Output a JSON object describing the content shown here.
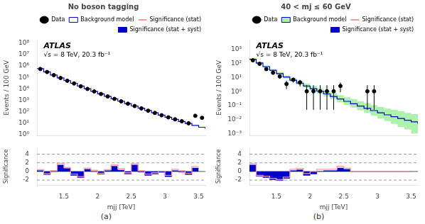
{
  "chart_data": [
    {
      "type": "line",
      "title": "No boson tagging",
      "panel_label": "(a)",
      "annotations": [
        "ATLAS",
        "√s = 8 TeV, 20.3 fb⁻¹"
      ],
      "xlabel": "mjj [TeV]",
      "xlim": [
        1.1,
        3.6
      ],
      "xticks": [
        1.5,
        2,
        2.5,
        3,
        3.5
      ],
      "ylabel": "Events / 100 GeV",
      "log": "y",
      "ylim": [
        0.8,
        200000000
      ],
      "yticks": [
        {
          "value": 1,
          "label": "10⁰"
        },
        {
          "value": 10,
          "label": "10¹"
        },
        {
          "value": 100,
          "label": "10²"
        },
        {
          "value": 1000,
          "label": "10³"
        },
        {
          "value": 10000,
          "label": "10⁴"
        },
        {
          "value": 100000,
          "label": "10⁵"
        },
        {
          "value": 1000000,
          "label": "10⁶"
        },
        {
          "value": 10000000,
          "label": "10⁷"
        },
        {
          "value": 100000000,
          "label": "10⁸"
        }
      ],
      "y2label": "Significance",
      "y2lim": [
        -3.2,
        5.5
      ],
      "y2ticks": [
        -2,
        0,
        2,
        4
      ],
      "hlines": [
        {
          "value": 0,
          "line_style": "solid"
        },
        {
          "value": 2,
          "line_style": "dashed"
        },
        {
          "value": -2,
          "line_style": "dashed"
        },
        {
          "value": 4,
          "line_style": "dashed"
        }
      ],
      "grid": false,
      "legend": "upper right",
      "series": [
        {
          "name": "Data",
          "type": "scatter",
          "marker": "circle",
          "color": "black",
          "x": [
            1.15,
            1.25,
            1.35,
            1.45,
            1.55,
            1.65,
            1.75,
            1.85,
            1.95,
            2.05,
            2.15,
            2.25,
            2.35,
            2.45,
            2.55,
            2.65,
            2.75,
            2.85,
            2.95,
            3.05,
            3.15,
            3.25,
            3.35,
            3.45,
            3.55
          ],
          "values": [
            550000,
            300000,
            160000,
            90000,
            52000,
            30000,
            17000,
            10000,
            6000,
            3600,
            2200,
            1350,
            820,
            510,
            320,
            200,
            125,
            80,
            50,
            33,
            22,
            15,
            10,
            45,
            30
          ],
          "errors": [
            800,
            550,
            400,
            300,
            230,
            175,
            130,
            100,
            78,
            60,
            47,
            37,
            29,
            23,
            18,
            14,
            11,
            9,
            7,
            6,
            5,
            4,
            3,
            7,
            6
          ]
        },
        {
          "name": "Background model",
          "type": "step",
          "color": "#0000cc",
          "x": [
            1.1,
            1.2,
            1.3,
            1.4,
            1.5,
            1.6,
            1.7,
            1.8,
            1.9,
            2.0,
            2.1,
            2.2,
            2.3,
            2.4,
            2.5,
            2.6,
            2.7,
            2.8,
            2.9,
            3.0,
            3.1,
            3.2,
            3.3,
            3.4,
            3.5,
            3.6
          ],
          "values": [
            600000,
            310000,
            165000,
            92000,
            53000,
            31000,
            18000,
            10500,
            6200,
            3700,
            2270,
            1390,
            850,
            525,
            325,
            205,
            130,
            82,
            52,
            34,
            22,
            14.5,
            9.8,
            6.6,
            4.5,
            3.0
          ]
        },
        {
          "name": "Significance (stat)",
          "type": "step",
          "axis": "y2",
          "color": "#ff9999",
          "bins": [
            1.1,
            1.2,
            1.3,
            1.4,
            1.5,
            1.6,
            1.7,
            1.8,
            1.9,
            2.0,
            2.1,
            2.2,
            2.3,
            2.4,
            2.5,
            2.6,
            2.7,
            2.8,
            2.9,
            3.0,
            3.1,
            3.2,
            3.3,
            3.4,
            3.5
          ],
          "values": [
            0.4,
            -0.5,
            0.2,
            1.9,
            0.9,
            -0.6,
            -1.2,
            0.8,
            0.3,
            -0.4,
            0.4,
            1.5,
            0.6,
            -0.3,
            1.8,
            0.2,
            -0.6,
            -0.3,
            0.1,
            -0.9,
            0.5,
            0.2,
            -0.4,
            1.1
          ]
        },
        {
          "name": "Significance (stat + syst)",
          "type": "histogram",
          "axis": "y2",
          "color": "#0000cc",
          "bins": [
            1.1,
            1.2,
            1.3,
            1.4,
            1.5,
            1.6,
            1.7,
            1.8,
            1.9,
            2.0,
            2.1,
            2.2,
            2.3,
            2.4,
            2.5,
            2.6,
            2.7,
            2.8,
            2.9,
            3.0,
            3.1,
            3.2,
            3.3,
            3.4,
            3.5
          ],
          "values": [
            0.2,
            -0.7,
            0.0,
            1.5,
            0.7,
            -0.9,
            -1.4,
            0.5,
            0.0,
            -0.6,
            0.2,
            1.2,
            0.3,
            -0.6,
            1.5,
            -0.1,
            -0.9,
            -0.6,
            -0.2,
            -1.2,
            0.2,
            -0.1,
            -0.7,
            0.8
          ]
        }
      ]
    },
    {
      "type": "line",
      "title": "40 < mj ≤ 60 GeV",
      "panel_label": "(b)",
      "annotations": [
        "ATLAS",
        "√s = 8 TeV, 20.3 fb⁻¹"
      ],
      "xlabel": "mjj [TeV]",
      "xlim": [
        1.1,
        3.6
      ],
      "xticks": [
        1.5,
        2,
        2.5,
        3,
        3.5
      ],
      "ylabel": "Events / 100 GeV",
      "log": "y",
      "ylim": [
        0.0007,
        5000
      ],
      "yticks": [
        {
          "value": 0.001,
          "label": "10⁻³"
        },
        {
          "value": 0.01,
          "label": "10⁻²"
        },
        {
          "value": 0.1,
          "label": "10⁻¹"
        },
        {
          "value": 1,
          "label": "10⁰"
        },
        {
          "value": 10,
          "label": "10¹"
        },
        {
          "value": 100,
          "label": "10²"
        },
        {
          "value": 1000,
          "label": "10³"
        }
      ],
      "y2label": "Significance",
      "y2lim": [
        -3.2,
        5.5
      ],
      "y2ticks": [
        -2,
        0,
        2,
        4
      ],
      "hlines": [
        {
          "value": 0,
          "line_style": "solid"
        },
        {
          "value": 2,
          "line_style": "dashed"
        },
        {
          "value": -2,
          "line_style": "dashed"
        },
        {
          "value": 4,
          "line_style": "dashed"
        }
      ],
      "grid": false,
      "legend": "upper right",
      "series": [
        {
          "name": "Data",
          "type": "scatter",
          "marker": "circle",
          "color": "black",
          "x": [
            1.15,
            1.25,
            1.35,
            1.45,
            1.55,
            1.65,
            1.75,
            1.85,
            1.95,
            2.05,
            2.15,
            2.25,
            2.35,
            2.45,
            2.85,
            2.95
          ],
          "values": [
            170,
            95,
            40,
            22,
            12,
            3.5,
            7.0,
            4.5,
            1.05,
            1.05,
            1.05,
            1.05,
            1.05,
            2.5,
            1.05,
            1.05
          ],
          "errors_low": [
            13,
            10,
            6,
            5,
            3.5,
            2.0,
            2.7,
            2.2,
            1.0,
            1.0,
            1.0,
            1.0,
            1.0,
            1.6,
            1.0,
            1.0
          ],
          "errors_high": [
            14,
            10,
            7,
            5,
            3.8,
            2.5,
            2.8,
            2.3,
            1.8,
            1.8,
            1.8,
            1.8,
            1.8,
            1.9,
            1.8,
            1.8
          ]
        },
        {
          "name": "Background model",
          "type": "step",
          "color": "#0000cc",
          "x": [
            1.1,
            1.2,
            1.3,
            1.4,
            1.5,
            1.6,
            1.7,
            1.8,
            1.9,
            2.0,
            2.1,
            2.2,
            2.3,
            2.4,
            2.5,
            2.6,
            2.7,
            2.8,
            2.9,
            3.0,
            3.1,
            3.2,
            3.3,
            3.4,
            3.5,
            3.6
          ],
          "values": [
            200,
            110,
            60,
            33,
            19,
            11,
            6.5,
            4.0,
            2.5,
            1.6,
            1.05,
            0.68,
            0.45,
            0.3,
            0.2,
            0.135,
            0.092,
            0.063,
            0.044,
            0.031,
            0.022,
            0.016,
            0.012,
            0.009,
            0.007,
            0.005
          ]
        },
        {
          "type": "band",
          "color": "#90ee90",
          "x": [
            1.1,
            1.2,
            1.3,
            1.4,
            1.5,
            1.6,
            1.7,
            1.8,
            1.9,
            2.0,
            2.1,
            2.2,
            2.3,
            2.4,
            2.5,
            2.6,
            2.7,
            2.8,
            2.9,
            3.0,
            3.1,
            3.2,
            3.3,
            3.4,
            3.5,
            3.6
          ],
          "low": [
            165,
            92,
            50,
            27,
            15,
            8.5,
            5.0,
            3.0,
            1.8,
            1.1,
            0.7,
            0.44,
            0.28,
            0.17,
            0.11,
            0.073,
            0.047,
            0.03,
            0.019,
            0.012,
            0.008,
            0.005,
            0.003,
            0.002,
            0.001,
            0.001
          ],
          "high": [
            240,
            132,
            72,
            40,
            24,
            14.5,
            9.0,
            5.8,
            3.8,
            2.5,
            1.7,
            1.15,
            0.79,
            0.55,
            0.39,
            0.28,
            0.2,
            0.15,
            0.11,
            0.08,
            0.06,
            0.05,
            0.04,
            0.03,
            0.025,
            0.02
          ]
        },
        {
          "name": "Significance (stat)",
          "type": "step",
          "axis": "y2",
          "color": "#ff9999",
          "bins": [
            1.1,
            1.2,
            1.3,
            1.4,
            1.5,
            1.6,
            1.7,
            1.8,
            1.9,
            2.0,
            2.1,
            2.2,
            2.3,
            2.4,
            2.5,
            2.6,
            2.7,
            2.8,
            2.9,
            3.0,
            3.1,
            3.2,
            3.3,
            3.4,
            3.5
          ],
          "values": [
            1.8,
            -0.9,
            -1.1,
            -1.6,
            -1.9,
            -1.3,
            0.5,
            0.7,
            -0.5,
            0.0,
            0.5,
            0.5,
            0.5,
            1.2,
            0.8,
            0.0,
            0.0,
            0.0,
            0.0,
            0.0,
            0.0,
            0.0,
            0.0,
            0.0
          ]
        },
        {
          "name": "Significance (stat + syst)",
          "type": "histogram",
          "axis": "y2",
          "color": "#0000cc",
          "bins": [
            1.1,
            1.2,
            1.3,
            1.4,
            1.5,
            1.6,
            1.7,
            1.8,
            1.9,
            2.0,
            2.1,
            2.2,
            2.3,
            2.4,
            2.5,
            2.6,
            2.7,
            2.8,
            2.9,
            3.0,
            3.1,
            3.2,
            3.3,
            3.4,
            3.5
          ],
          "values": [
            1.5,
            -1.1,
            -1.4,
            -1.9,
            -2.1,
            -1.6,
            0.2,
            0.4,
            -0.9,
            -0.6,
            0.0,
            0.2,
            0.2,
            0.8,
            0.5,
            0.0,
            0.0,
            0.0,
            0.0,
            0.0,
            0.0,
            0.0,
            0.0,
            0.0
          ]
        }
      ]
    }
  ]
}
